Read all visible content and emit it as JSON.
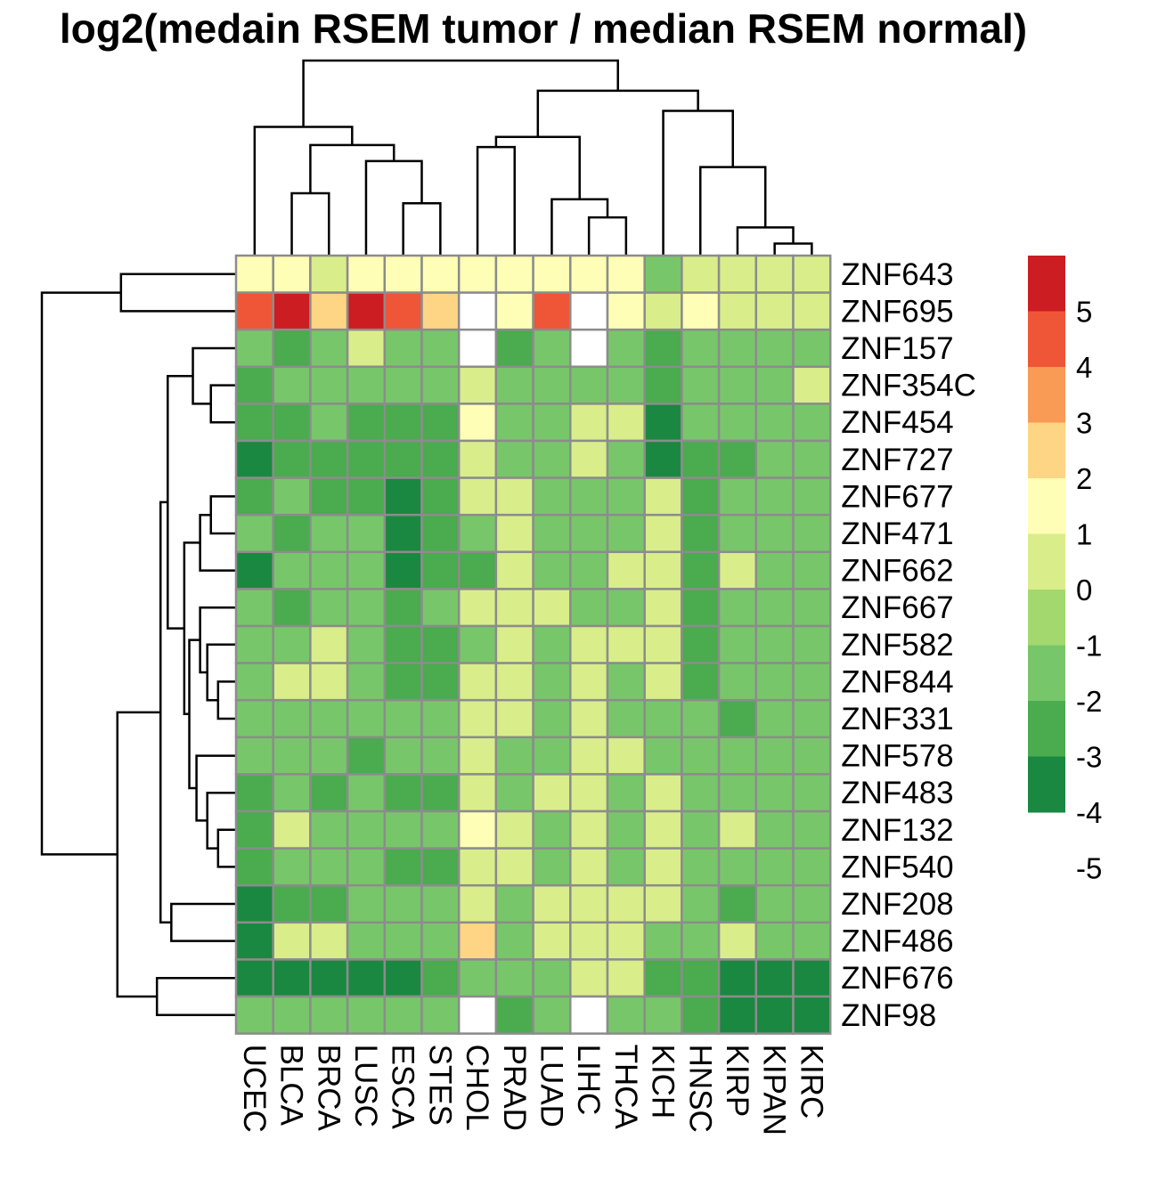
{
  "chart_data": {
    "type": "heatmap",
    "title": "log2(medain RSEM tumor / median RSEM normal)",
    "columns": [
      "UCEC",
      "BLCA",
      "BRCA",
      "LUSC",
      "ESCA",
      "STES",
      "CHOL",
      "PRAD",
      "LUAD",
      "LIHC",
      "THCA",
      "KICH",
      "HNSC",
      "KIRP",
      "KIPAN",
      "KIRC"
    ],
    "rows": [
      "ZNF643",
      "ZNF695",
      "ZNF157",
      "ZNF354C",
      "ZNF454",
      "ZNF727",
      "ZNF677",
      "ZNF471",
      "ZNF662",
      "ZNF667",
      "ZNF582",
      "ZNF844",
      "ZNF331",
      "ZNF578",
      "ZNF483",
      "ZNF132",
      "ZNF540",
      "ZNF208",
      "ZNF486",
      "ZNF676",
      "ZNF98"
    ],
    "values": [
      [
        1.5,
        1.5,
        0.5,
        1.5,
        1.5,
        1.5,
        1.5,
        1.5,
        1.5,
        1.5,
        1.5,
        -1.5,
        0.5,
        0.5,
        0.5,
        0.5
      ],
      [
        4.5,
        5.5,
        2.5,
        5.5,
        4.5,
        2.5,
        null,
        1.5,
        4.5,
        null,
        1.5,
        0.5,
        1.5,
        0.5,
        0.5,
        0.5
      ],
      [
        -1.5,
        -2.5,
        -1.5,
        0.5,
        -1.5,
        -1.5,
        null,
        -2.5,
        -1.5,
        null,
        -1.5,
        -2.5,
        -1.5,
        -1.5,
        -1.5,
        -1.5
      ],
      [
        -2.5,
        -1.5,
        -1.5,
        -1.5,
        -1.5,
        -1.5,
        0.5,
        -1.5,
        -1.5,
        -1.5,
        -1.5,
        -2.5,
        -1.5,
        -1.5,
        -1.5,
        0.5
      ],
      [
        -2.5,
        -2.5,
        -1.5,
        -2.5,
        -2.5,
        -2.5,
        1.5,
        -1.5,
        -1.5,
        0.5,
        0.5,
        -3.5,
        -1.5,
        -1.5,
        -1.5,
        -1.5
      ],
      [
        -3.5,
        -2.5,
        -2.5,
        -2.5,
        -2.5,
        -2.5,
        0.5,
        -1.5,
        -1.5,
        0.5,
        -1.5,
        -3.5,
        -2.5,
        -2.5,
        -1.5,
        -1.5
      ],
      [
        -2.5,
        -1.5,
        -2.5,
        -2.5,
        -3.5,
        -2.5,
        0.5,
        0.5,
        -1.5,
        -1.5,
        -1.5,
        0.5,
        -2.5,
        -1.5,
        -1.5,
        -1.5
      ],
      [
        -1.5,
        -2.5,
        -1.5,
        -1.5,
        -3.5,
        -2.5,
        -1.5,
        0.5,
        -1.5,
        -1.5,
        -1.5,
        0.5,
        -2.5,
        -1.5,
        -1.5,
        -1.5
      ],
      [
        -3.5,
        -1.5,
        -1.5,
        -1.5,
        -3.5,
        -2.5,
        -2.5,
        0.5,
        -1.5,
        -1.5,
        0.5,
        0.5,
        -2.5,
        0.5,
        -1.5,
        -1.5
      ],
      [
        -1.5,
        -2.5,
        -1.5,
        -1.5,
        -2.5,
        -1.5,
        0.5,
        0.5,
        0.5,
        -1.5,
        -1.5,
        0.5,
        -2.5,
        -1.5,
        -1.5,
        -1.5
      ],
      [
        -1.5,
        -1.5,
        0.5,
        -1.5,
        -2.5,
        -2.5,
        -1.5,
        0.5,
        -1.5,
        0.5,
        0.5,
        0.5,
        -2.5,
        -1.5,
        -1.5,
        -1.5
      ],
      [
        -1.5,
        0.5,
        0.5,
        -1.5,
        -2.5,
        -2.5,
        0.5,
        0.5,
        -1.5,
        0.5,
        -1.5,
        0.5,
        -2.5,
        -1.5,
        -1.5,
        -1.5
      ],
      [
        -1.5,
        -1.5,
        -1.5,
        -1.5,
        -1.5,
        -1.5,
        0.5,
        0.5,
        -1.5,
        0.5,
        -1.5,
        -1.5,
        -1.5,
        -2.5,
        -1.5,
        -1.5
      ],
      [
        -1.5,
        -1.5,
        -1.5,
        -2.5,
        -1.5,
        -1.5,
        0.5,
        -1.5,
        -1.5,
        0.5,
        0.5,
        -1.5,
        -1.5,
        -1.5,
        -1.5,
        -1.5
      ],
      [
        -2.5,
        -1.5,
        -2.5,
        -1.5,
        -2.5,
        -2.5,
        0.5,
        -1.5,
        0.5,
        0.5,
        -1.5,
        0.5,
        -1.5,
        -1.5,
        -1.5,
        -1.5
      ],
      [
        -2.5,
        0.5,
        -1.5,
        -1.5,
        -1.5,
        -1.5,
        1.5,
        0.5,
        -1.5,
        0.5,
        -1.5,
        0.5,
        -1.5,
        0.5,
        -1.5,
        -1.5
      ],
      [
        -2.5,
        -1.5,
        -1.5,
        -1.5,
        -2.5,
        -2.5,
        0.5,
        0.5,
        -1.5,
        0.5,
        -1.5,
        0.5,
        -1.5,
        -1.5,
        -1.5,
        -1.5
      ],
      [
        -5.5,
        -2.5,
        -2.5,
        -1.5,
        -1.5,
        -1.5,
        0.5,
        -1.5,
        0.5,
        0.5,
        0.5,
        0.5,
        -1.5,
        -2.5,
        -1.5,
        -1.5
      ],
      [
        -3.5,
        0.5,
        0.5,
        -1.5,
        -1.5,
        -1.5,
        2.5,
        -1.5,
        0.5,
        0.5,
        0.5,
        -1.5,
        -1.5,
        0.5,
        -1.5,
        -1.5
      ],
      [
        -5.5,
        -3.5,
        -3.5,
        -3.5,
        -3.5,
        -2.5,
        -1.5,
        -1.5,
        -1.5,
        0.5,
        0.5,
        -2.5,
        -2.5,
        -3.5,
        -3.5,
        -3.5
      ],
      [
        -1.5,
        -1.5,
        -1.5,
        -1.5,
        -1.5,
        -1.5,
        null,
        -2.5,
        -1.5,
        null,
        -1.5,
        -1.5,
        -2.5,
        -3.5,
        -3.5,
        -3.5
      ]
    ],
    "legend": {
      "placement": "right",
      "ticks": [
        "5",
        "4",
        "3",
        "2",
        "1",
        "0",
        "-1",
        "-2",
        "-3",
        "-4",
        "-5"
      ],
      "bins": [
        {
          "upper": 6,
          "color": "#CC1D22"
        },
        {
          "upper": 5,
          "color": "#EE5637"
        },
        {
          "upper": 4,
          "color": "#F99A55"
        },
        {
          "upper": 3,
          "color": "#FDD584"
        },
        {
          "upper": 2,
          "color": "#FEFEB6"
        },
        {
          "upper": 1,
          "color": "#D9EE8B"
        },
        {
          "upper": 0,
          "color": "#A3D86E"
        },
        {
          "upper": -1,
          "color": "#78C66A"
        },
        {
          "upper": -2,
          "color": "#4AAB4F"
        },
        {
          "upper": -3,
          "color": "#1A8840"
        }
      ]
    },
    "na_color": "#FFFFFF",
    "cell_border_color": "#8C8C8C",
    "column_dendrogram": {
      "merges": [
        [
          -15,
          -16
        ],
        [
          -14,
          1
        ],
        [
          -10,
          -11
        ],
        [
          -9,
          3
        ],
        [
          -2,
          -3
        ],
        [
          -5,
          -6
        ],
        [
          -13,
          2
        ],
        [
          -4,
          6
        ],
        [
          -7,
          -8
        ],
        [
          4,
          9
        ],
        [
          -12,
          7
        ],
        [
          5,
          8
        ],
        [
          10,
          11
        ],
        [
          -1,
          12
        ],
        [
          13,
          14
        ]
      ],
      "heights": [
        0.3,
        0.7,
        0.95,
        1.4,
        1.55,
        1.3,
        2.2,
        2.35,
        2.7,
        2.95,
        3.6,
        2.75,
        4.1,
        3.2,
        4.85
      ]
    },
    "row_dendrogram": {
      "merges": [
        [
          -4,
          -5
        ],
        [
          -3,
          1
        ],
        [
          -7,
          -8
        ],
        [
          -9,
          3
        ],
        [
          -12,
          -13
        ],
        [
          -11,
          5
        ],
        [
          -10,
          6
        ],
        [
          -16,
          -17
        ],
        [
          -15,
          8
        ],
        [
          -14,
          9
        ],
        [
          7,
          10
        ],
        [
          4,
          11
        ],
        [
          2,
          12
        ],
        [
          -18,
          -19
        ],
        [
          13,
          14
        ],
        [
          -20,
          -21
        ],
        [
          15,
          16
        ],
        [
          -1,
          -2
        ],
        [
          17,
          18
        ]
      ],
      "heights": [
        0.35,
        0.6,
        0.35,
        0.5,
        0.25,
        0.4,
        0.5,
        0.25,
        0.4,
        0.55,
        0.65,
        0.72,
        0.95,
        0.9,
        1.05,
        1.1,
        1.65,
        1.6,
        2.7
      ]
    }
  }
}
